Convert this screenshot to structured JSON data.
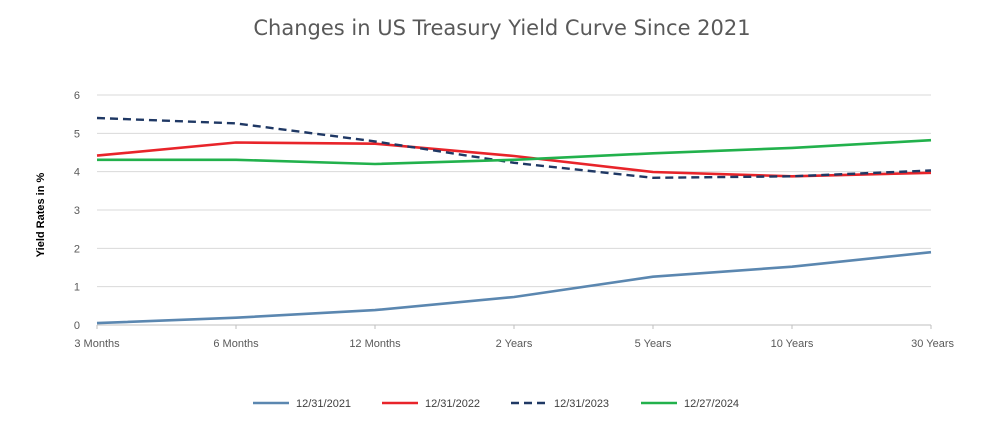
{
  "chart_data": {
    "type": "line",
    "title": "Changes in US Treasury Yield Curve Since 2021",
    "xlabel": "",
    "ylabel": "Yield Rates in %",
    "categories": [
      "3 Months",
      "6 Months",
      "12 Months",
      "2 Years",
      "5 Years",
      "10 Years",
      "30 Years"
    ],
    "ylim": [
      0,
      6
    ],
    "yticks": [
      "0",
      "1",
      "2",
      "3",
      "4",
      "5",
      "6"
    ],
    "grid": true,
    "legend_position": "bottom",
    "series": [
      {
        "name": "12/31/2021",
        "color": "#5b87b0",
        "dash": "solid",
        "values": [
          0.05,
          0.19,
          0.39,
          0.73,
          1.26,
          1.52,
          1.9
        ]
      },
      {
        "name": "12/31/2022",
        "color": "#e8242a",
        "dash": "solid",
        "values": [
          4.42,
          4.76,
          4.73,
          4.41,
          3.99,
          3.88,
          3.97
        ]
      },
      {
        "name": "12/31/2023",
        "color": "#1f3864",
        "dash": "dashed",
        "values": [
          5.4,
          5.26,
          4.79,
          4.23,
          3.84,
          3.88,
          4.03
        ]
      },
      {
        "name": "12/27/2024",
        "color": "#22b14c",
        "dash": "solid",
        "values": [
          4.31,
          4.31,
          4.2,
          4.31,
          4.48,
          4.62,
          4.82
        ]
      }
    ]
  }
}
